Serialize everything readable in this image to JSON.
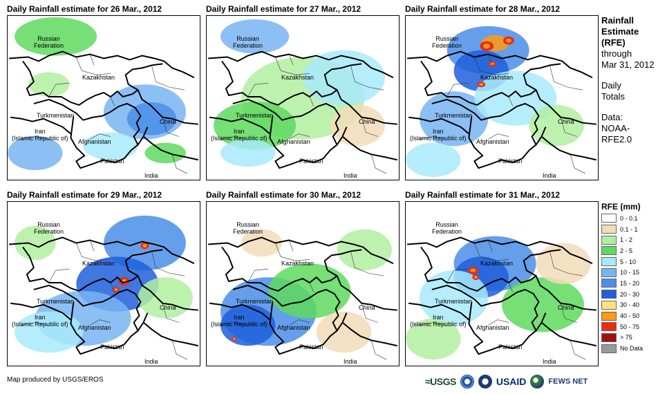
{
  "panels": [
    {
      "title": "Daily Rainfall estimate for 26 Mar., 2012"
    },
    {
      "title": "Daily Rainfall estimate for 27 Mar., 2012"
    },
    {
      "title": "Daily Rainfall estimate for 28 Mar., 2012"
    },
    {
      "title": "Daily Rainfall estimate for 29 Mar., 2012"
    },
    {
      "title": "Daily Rainfall estimate for 30 Mar., 2012"
    },
    {
      "title": "Daily Rainfall estimate for 31 Mar., 2012"
    }
  ],
  "map_labels": {
    "russia": "Russian\nFederation",
    "kazakhstan": "Kazakhstan",
    "turkmenistan": "Turkmenistan",
    "iran": "Iran\n(Islamic Republic of)",
    "afghanistan": "Afghanistan",
    "pakistan": "Pakistan",
    "china": "China",
    "india": "India"
  },
  "sidebar": {
    "title": "Rainfall\nEstimate\n(RFE)",
    "through": "through\nMar 31, 2012",
    "totals": "Daily\nTotals",
    "data": "Data:\nNOAA-\nRFE2.0"
  },
  "legend": {
    "title": "RFE (mm)",
    "items": [
      {
        "label": "0 - 0.1",
        "color": "#ffffff"
      },
      {
        "label": "0.1 - 1",
        "color": "#f2dcb8"
      },
      {
        "label": "1 - 2",
        "color": "#b2eea0"
      },
      {
        "label": "2 - 5",
        "color": "#5ed95e"
      },
      {
        "label": "5 - 10",
        "color": "#a8eafc"
      },
      {
        "label": "10 - 15",
        "color": "#78b4f2"
      },
      {
        "label": "15 - 20",
        "color": "#4a8ee8"
      },
      {
        "label": "20 - 30",
        "color": "#1f5fdc"
      },
      {
        "label": "30 - 40",
        "color": "#ffe47a"
      },
      {
        "label": "40 - 50",
        "color": "#ff9a14"
      },
      {
        "label": "50 - 75",
        "color": "#ee2a10"
      },
      {
        "label": "> 75",
        "color": "#a01010"
      },
      {
        "label": "No Data",
        "color": "#999999"
      }
    ]
  },
  "footer": {
    "credit": "Map produced by USGS/EROS"
  },
  "logos": {
    "usgs": "≈USGS",
    "usaid": "USAID",
    "fews": "FEWS NET"
  }
}
